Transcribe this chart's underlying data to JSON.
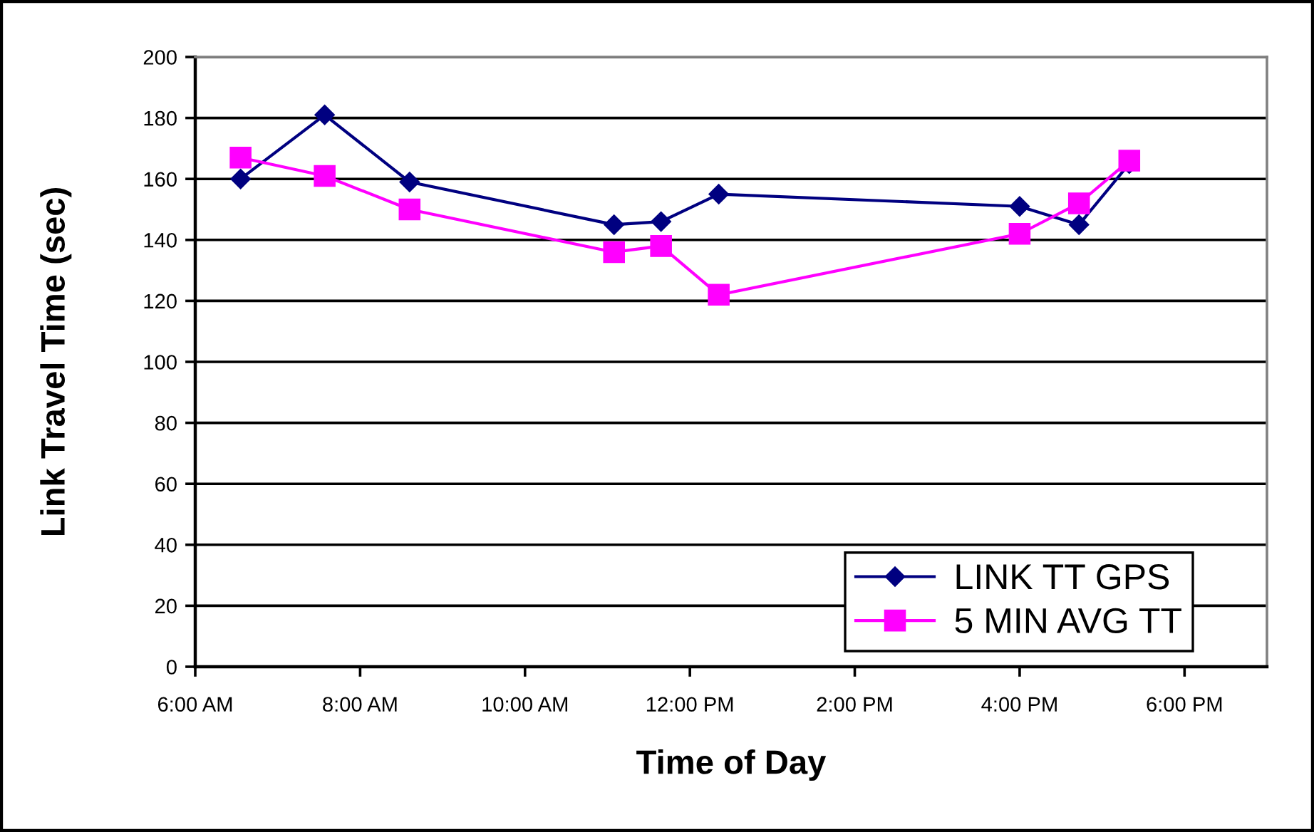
{
  "chart_data": {
    "type": "line",
    "xlabel": "Time of Day",
    "ylabel": "Link Travel Time (sec)",
    "x": [
      6.55,
      7.57,
      8.6,
      11.08,
      11.65,
      12.35,
      16.0,
      16.72,
      17.33
    ],
    "series": [
      {
        "name": "LINK TT GPS",
        "color": "#000080",
        "marker": "diamond",
        "values": [
          160,
          181,
          159,
          145,
          146,
          155,
          151,
          145,
          165
        ]
      },
      {
        "name": "5 MIN AVG TT",
        "color": "#ff00ff",
        "marker": "square",
        "values": [
          167,
          161,
          150,
          136,
          138,
          122,
          142,
          152,
          166
        ]
      }
    ],
    "xlim": [
      6,
      19
    ],
    "xticks": [
      {
        "value": 6,
        "label": "6:00 AM"
      },
      {
        "value": 8,
        "label": "8:00 AM"
      },
      {
        "value": 10,
        "label": "10:00 AM"
      },
      {
        "value": 12,
        "label": "12:00 PM"
      },
      {
        "value": 14,
        "label": "2:00 PM"
      },
      {
        "value": 16,
        "label": "4:00 PM"
      },
      {
        "value": 18,
        "label": "6:00 PM"
      }
    ],
    "ylim": [
      0,
      200
    ],
    "yticks": [
      0,
      20,
      40,
      60,
      80,
      100,
      120,
      140,
      160,
      180,
      200
    ],
    "grid": "y",
    "legend": "bottom right",
    "line_style": "solid"
  }
}
